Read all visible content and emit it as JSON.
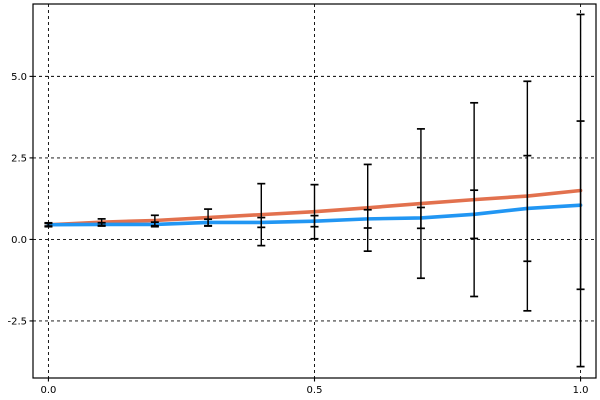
{
  "figure": {
    "title": "",
    "background": "#ffffff"
  },
  "chart_data": {
    "type": "line",
    "title": "",
    "xlabel": "",
    "ylabel": "",
    "x": [
      0.0,
      0.1,
      0.2,
      0.3,
      0.4,
      0.5,
      0.6,
      0.7,
      0.8,
      0.9,
      1.0
    ],
    "series": [
      {
        "name": "orange-line",
        "color": "#e2714e",
        "line_width": 3.6,
        "values": [
          0.45,
          0.53,
          0.58,
          0.67,
          0.76,
          0.85,
          0.97,
          1.1,
          1.22,
          1.33,
          1.5
        ],
        "yerr": [
          0.06,
          0.1,
          0.16,
          0.26,
          0.95,
          0.83,
          1.33,
          2.29,
          2.97,
          3.52,
          5.4
        ],
        "errorbar_color": "#000000"
      },
      {
        "name": "blue-line",
        "color": "#2196f3",
        "line_width": 3.6,
        "values": [
          0.45,
          0.46,
          0.46,
          0.52,
          0.52,
          0.56,
          0.63,
          0.66,
          0.77,
          0.95,
          1.05
        ],
        "yerr": [
          0.04,
          0.05,
          0.07,
          0.1,
          0.15,
          0.17,
          0.28,
          0.32,
          0.74,
          1.62,
          2.58
        ],
        "errorbar_color": "#000000"
      }
    ],
    "xticks": {
      "values": [
        0.0,
        0.5,
        1.0
      ],
      "labels": [
        "0.0",
        "0.5",
        "1.0"
      ]
    },
    "yticks": {
      "values": [
        -2.5,
        0.0,
        2.5,
        5.0
      ],
      "labels": [
        "-2.5",
        "0.0",
        "2.5",
        "5.0"
      ]
    },
    "xlim": [
      -0.029,
      1.029
    ],
    "ylim": [
      -4.25,
      7.22
    ],
    "grid": {
      "visible": true,
      "style": "dashed",
      "color": "#000000",
      "dash": "3,3",
      "line_width": 0.9
    },
    "legend": {
      "visible": false
    },
    "errorbar": {
      "line_width": 1.4,
      "cap_half_width": 4,
      "cap_line_width": 1.7
    }
  }
}
